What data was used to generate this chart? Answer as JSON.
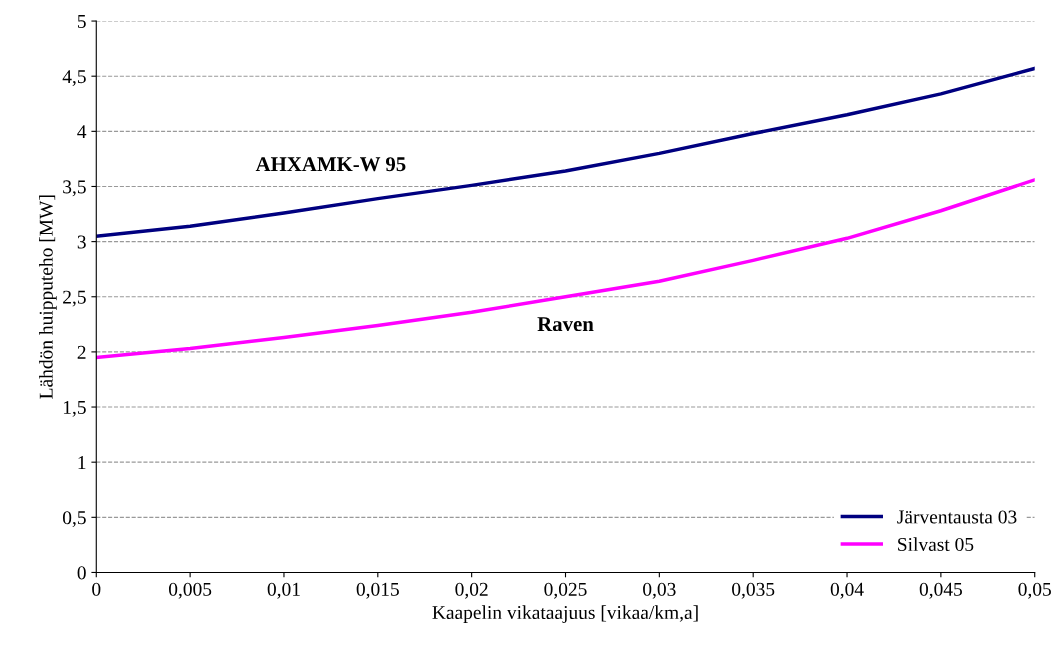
{
  "chart_data": {
    "type": "line",
    "xlabel": "Kaapelin vikataajuus [vikaa/km,a]",
    "ylabel": "Lähdön huipputeho [MW]",
    "x": [
      0,
      0.005,
      0.01,
      0.015,
      0.02,
      0.025,
      0.03,
      0.035,
      0.04,
      0.045,
      0.05
    ],
    "series": [
      {
        "name": "Järventausta 03",
        "color": "#000080",
        "values": [
          3.05,
          3.14,
          3.26,
          3.39,
          3.51,
          3.64,
          3.8,
          3.98,
          4.15,
          4.34,
          4.57
        ]
      },
      {
        "name": "Silvast 05",
        "color": "#ff00ff",
        "values": [
          1.95,
          2.03,
          2.13,
          2.24,
          2.36,
          2.5,
          2.64,
          2.83,
          3.03,
          3.28,
          3.56
        ]
      }
    ],
    "xlim": [
      0,
      0.05
    ],
    "ylim": [
      0,
      5
    ],
    "xticks": [
      0,
      {
        "value": 0.005,
        "label": "0,005"
      },
      {
        "value": 0.01,
        "label": "0,01"
      },
      {
        "value": 0.015,
        "label": "0,015"
      },
      {
        "value": 0.02,
        "label": "0,02"
      },
      {
        "value": 0.025,
        "label": "0,025"
      },
      {
        "value": 0.03,
        "label": "0,03"
      },
      {
        "value": 0.035,
        "label": "0,035"
      },
      {
        "value": 0.04,
        "label": "0,04"
      },
      {
        "value": 0.045,
        "label": "0,045"
      },
      {
        "value": 0.05,
        "label": "0,05"
      }
    ],
    "yticks": [
      0,
      {
        "value": 0.5,
        "label": "0,5"
      },
      1,
      {
        "value": 1.5,
        "label": "1,5"
      },
      2,
      {
        "value": 2.5,
        "label": "2,5"
      },
      3,
      {
        "value": 3.5,
        "label": "3,5"
      },
      4,
      {
        "value": 4.5,
        "label": "4,5"
      },
      5
    ],
    "annotations": [
      "AHXAMK-W 95",
      "Raven"
    ],
    "grid": "y",
    "legend": "bottom right",
    "marker": "none",
    "line_style": "solid"
  }
}
